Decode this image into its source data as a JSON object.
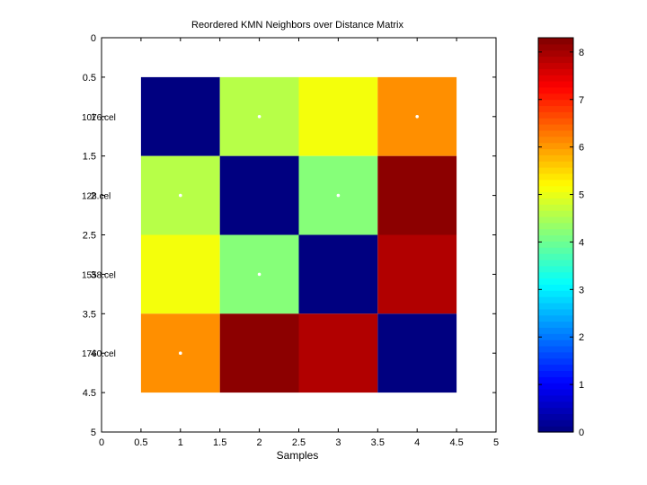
{
  "chart_data": {
    "type": "heatmap",
    "title": "Reordered KMN Neighbors over Distance Matrix",
    "xlabel": "Samples",
    "ylabel": "",
    "xlim": [
      0,
      5
    ],
    "ylim": [
      0,
      5
    ],
    "x_ticks": [
      "0",
      "0.5",
      "1",
      "1.5",
      "2",
      "2.5",
      "3",
      "3.5",
      "4",
      "4.5",
      "5"
    ],
    "y_ticks": [
      "0",
      "0.5",
      "1",
      "1.5",
      "2",
      "2.5",
      "3",
      "3.5",
      "4",
      "4.5",
      "5"
    ],
    "row_labels": [
      "1076.cel",
      "128.cel",
      "1558.cel",
      "1760.cel"
    ],
    "values": [
      [
        0.0,
        4.6,
        5.1,
        6.1
      ],
      [
        4.6,
        0.0,
        4.2,
        8.2
      ],
      [
        5.1,
        4.2,
        0.0,
        7.9
      ],
      [
        6.1,
        8.2,
        7.9,
        0.0
      ]
    ],
    "neighbor_markers": [
      [
        2,
        1
      ],
      [
        4,
        1
      ],
      [
        1,
        2
      ],
      [
        3,
        2
      ],
      [
        2,
        3
      ],
      [
        1,
        4
      ]
    ],
    "colorbar": {
      "colormap": "jet",
      "min": 0,
      "max": 8.3,
      "ticks": [
        "0",
        "1",
        "2",
        "3",
        "4",
        "5",
        "6",
        "7",
        "8"
      ]
    },
    "marker_color": "#ffffff",
    "axes_background": "#ffffff",
    "axis_color": "#000000"
  }
}
